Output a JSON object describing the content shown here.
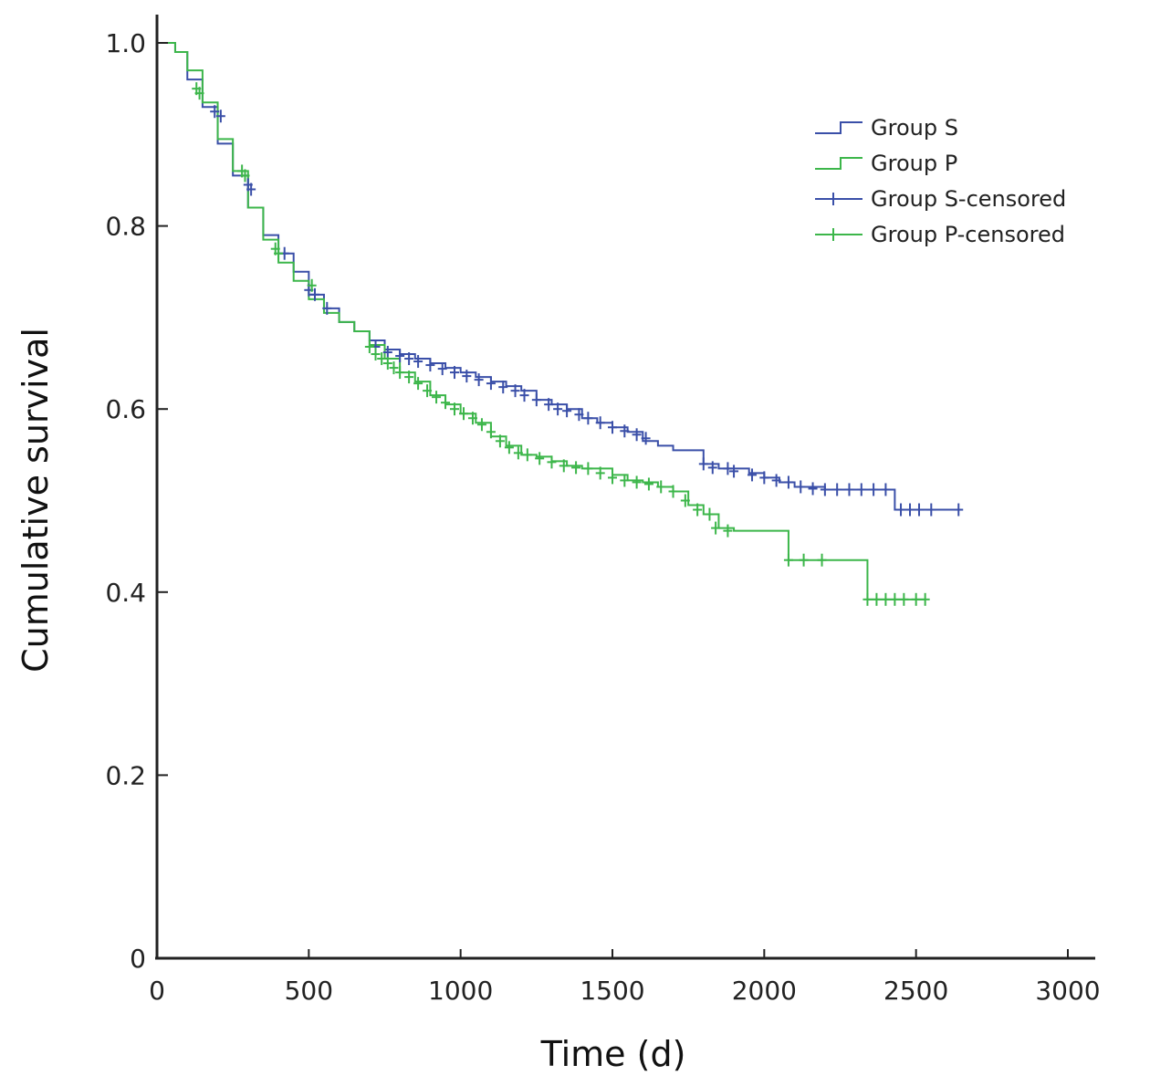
{
  "chart_data": {
    "type": "line",
    "subtype": "kaplan-meier",
    "title": "",
    "xlabel": "Time (d)",
    "ylabel": "Cumulative survival",
    "xlim": [
      0,
      3000
    ],
    "ylim": [
      0,
      1.0
    ],
    "x_ticks": [
      0,
      500,
      1000,
      1500,
      2000,
      2500,
      3000
    ],
    "y_ticks": [
      0,
      0.2,
      0.4,
      0.6,
      0.8,
      1.0
    ],
    "x_tick_labels": [
      "0",
      "500",
      "1000",
      "1500",
      "2000",
      "2500",
      "3000"
    ],
    "y_tick_labels": [
      "0",
      "0.2",
      "0.4",
      "0.6",
      "0.8",
      "1.0"
    ],
    "grid": false,
    "legend_position": "top-right",
    "legend": [
      "Group S",
      "Group P",
      "Group S-censored",
      "Group P-censored"
    ],
    "colors": {
      "group_s": "#3a4fa8",
      "group_p": "#3cb64a"
    },
    "series": [
      {
        "name": "Group S",
        "x": [
          0,
          30,
          60,
          100,
          150,
          200,
          250,
          300,
          350,
          400,
          450,
          500,
          550,
          600,
          650,
          700,
          750,
          800,
          850,
          900,
          950,
          1000,
          1050,
          1100,
          1150,
          1200,
          1250,
          1300,
          1350,
          1400,
          1450,
          1500,
          1550,
          1600,
          1650,
          1700,
          1750,
          1800,
          1850,
          1900,
          1950,
          2000,
          2050,
          2100,
          2200,
          2300,
          2400,
          2430,
          2500,
          2650
        ],
        "y": [
          1.0,
          1.0,
          0.99,
          0.96,
          0.93,
          0.89,
          0.855,
          0.82,
          0.79,
          0.77,
          0.75,
          0.725,
          0.71,
          0.695,
          0.685,
          0.675,
          0.665,
          0.66,
          0.655,
          0.65,
          0.645,
          0.64,
          0.635,
          0.63,
          0.625,
          0.62,
          0.61,
          0.605,
          0.6,
          0.59,
          0.585,
          0.58,
          0.575,
          0.565,
          0.56,
          0.555,
          0.555,
          0.54,
          0.535,
          0.535,
          0.53,
          0.525,
          0.52,
          0.515,
          0.512,
          0.512,
          0.512,
          0.49,
          0.49,
          0.49
        ]
      },
      {
        "name": "Group P",
        "x": [
          0,
          30,
          60,
          100,
          150,
          200,
          250,
          300,
          350,
          400,
          450,
          500,
          550,
          600,
          650,
          700,
          750,
          800,
          850,
          900,
          950,
          1000,
          1050,
          1100,
          1150,
          1200,
          1250,
          1300,
          1350,
          1400,
          1450,
          1500,
          1550,
          1600,
          1650,
          1700,
          1750,
          1800,
          1850,
          1900,
          1950,
          2000,
          2050,
          2080,
          2200,
          2300,
          2340,
          2400,
          2530
        ],
        "y": [
          1.0,
          1.0,
          0.99,
          0.97,
          0.935,
          0.895,
          0.86,
          0.82,
          0.785,
          0.76,
          0.74,
          0.72,
          0.705,
          0.695,
          0.685,
          0.67,
          0.655,
          0.64,
          0.63,
          0.615,
          0.605,
          0.595,
          0.585,
          0.57,
          0.56,
          0.55,
          0.548,
          0.543,
          0.538,
          0.535,
          0.535,
          0.528,
          0.522,
          0.52,
          0.515,
          0.51,
          0.495,
          0.485,
          0.47,
          0.467,
          0.467,
          0.467,
          0.467,
          0.435,
          0.435,
          0.435,
          0.392,
          0.392,
          0.392
        ]
      }
    ],
    "censored": [
      {
        "name": "Group S-censored",
        "x": [
          190,
          210,
          300,
          310,
          420,
          500,
          520,
          560,
          720,
          760,
          800,
          830,
          860,
          900,
          940,
          980,
          1020,
          1060,
          1100,
          1140,
          1180,
          1210,
          1250,
          1290,
          1320,
          1350,
          1390,
          1420,
          1460,
          1500,
          1540,
          1580,
          1610,
          1800,
          1830,
          1880,
          1900,
          1960,
          2000,
          2040,
          2080,
          2120,
          2160,
          2200,
          2240,
          2280,
          2320,
          2360,
          2400,
          2450,
          2480,
          2510,
          2550,
          2640
        ],
        "y": [
          0.925,
          0.92,
          0.845,
          0.84,
          0.77,
          0.73,
          0.725,
          0.71,
          0.668,
          0.662,
          0.658,
          0.655,
          0.652,
          0.648,
          0.644,
          0.64,
          0.636,
          0.632,
          0.628,
          0.624,
          0.62,
          0.615,
          0.61,
          0.605,
          0.6,
          0.598,
          0.594,
          0.59,
          0.585,
          0.58,
          0.576,
          0.572,
          0.568,
          0.54,
          0.536,
          0.535,
          0.532,
          0.528,
          0.525,
          0.522,
          0.52,
          0.515,
          0.513,
          0.512,
          0.512,
          0.512,
          0.512,
          0.512,
          0.512,
          0.49,
          0.49,
          0.49,
          0.49,
          0.49
        ]
      },
      {
        "name": "Group P-censored",
        "x": [
          130,
          140,
          280,
          290,
          390,
          400,
          510,
          700,
          720,
          740,
          760,
          780,
          800,
          830,
          860,
          890,
          920,
          950,
          980,
          1010,
          1040,
          1070,
          1100,
          1130,
          1160,
          1190,
          1220,
          1260,
          1300,
          1340,
          1380,
          1420,
          1460,
          1500,
          1540,
          1580,
          1620,
          1660,
          1700,
          1740,
          1780,
          1820,
          1840,
          1880,
          2080,
          2130,
          2190,
          2340,
          2370,
          2400,
          2430,
          2460,
          2500,
          2530
        ],
        "y": [
          0.95,
          0.945,
          0.86,
          0.855,
          0.775,
          0.77,
          0.735,
          0.668,
          0.66,
          0.655,
          0.65,
          0.645,
          0.64,
          0.635,
          0.628,
          0.62,
          0.613,
          0.607,
          0.6,
          0.595,
          0.59,
          0.583,
          0.575,
          0.565,
          0.558,
          0.552,
          0.55,
          0.546,
          0.542,
          0.538,
          0.536,
          0.535,
          0.53,
          0.525,
          0.522,
          0.52,
          0.518,
          0.515,
          0.51,
          0.5,
          0.49,
          0.485,
          0.47,
          0.467,
          0.435,
          0.435,
          0.435,
          0.392,
          0.392,
          0.392,
          0.392,
          0.392,
          0.392,
          0.392
        ]
      }
    ]
  }
}
